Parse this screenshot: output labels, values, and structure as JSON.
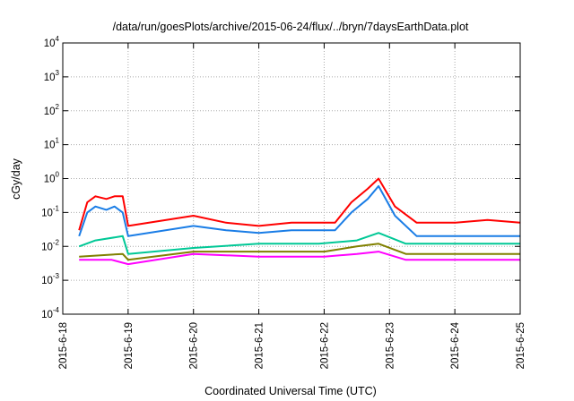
{
  "chart_data": {
    "type": "line",
    "title": "/data/run/goesPlots/archive/2015-06-24/flux/../bryn/7daysEarthData.plot",
    "xlabel": "Coordinated Universal Time (UTC)",
    "ylabel": "cGy/day",
    "y_scale": "log",
    "ylim": [
      0.0001,
      10000
    ],
    "y_ticks": [
      {
        "base": "10",
        "exp": "-4",
        "value": 0.0001
      },
      {
        "base": "10",
        "exp": "-3",
        "value": 0.001
      },
      {
        "base": "10",
        "exp": "-2",
        "value": 0.01
      },
      {
        "base": "10",
        "exp": "-1",
        "value": 0.1
      },
      {
        "base": "10",
        "exp": "0",
        "value": 1
      },
      {
        "base": "10",
        "exp": "1",
        "value": 10
      },
      {
        "base": "10",
        "exp": "2",
        "value": 100
      },
      {
        "base": "10",
        "exp": "3",
        "value": 1000
      },
      {
        "base": "10",
        "exp": "4",
        "value": 10000
      }
    ],
    "x_ticks": [
      "2015-6-18",
      "2015-6-19",
      "2015-6-20",
      "2015-6-21",
      "2015-6-22",
      "2015-6-23",
      "2015-6-24",
      "2015-6-25"
    ],
    "xlim": [
      "2015-6-18",
      "2015-6-25"
    ],
    "grid": true,
    "series": [
      {
        "color": "#ff0000",
        "x": [
          "2015-6-18 06:00",
          "2015-6-18 09:00",
          "2015-6-18 12:00",
          "2015-6-18 16:00",
          "2015-6-18 19:00",
          "2015-6-18 22:00",
          "2015-6-19 00:00",
          "2015-6-20 00:00",
          "2015-6-20 12:00",
          "2015-6-21 00:00",
          "2015-6-21 12:00",
          "2015-6-21 22:00",
          "2015-6-22 04:00",
          "2015-6-22 10:00",
          "2015-6-22 16:00",
          "2015-6-22 20:00",
          "2015-6-23 02:00",
          "2015-6-23 10:00",
          "2015-6-24 00:00",
          "2015-6-24 12:00",
          "2015-6-25 00:00"
        ],
        "y": [
          0.03,
          0.2,
          0.3,
          0.25,
          0.3,
          0.3,
          0.04,
          0.08,
          0.05,
          0.04,
          0.05,
          0.05,
          0.05,
          0.2,
          0.5,
          1.0,
          0.15,
          0.05,
          0.05,
          0.06,
          0.05
        ]
      },
      {
        "color": "#1a7de6",
        "x": [
          "2015-6-18 06:00",
          "2015-6-18 09:00",
          "2015-6-18 12:00",
          "2015-6-18 16:00",
          "2015-6-18 19:00",
          "2015-6-18 22:00",
          "2015-6-19 00:00",
          "2015-6-20 00:00",
          "2015-6-20 12:00",
          "2015-6-21 00:00",
          "2015-6-21 12:00",
          "2015-6-21 22:00",
          "2015-6-22 04:00",
          "2015-6-22 10:00",
          "2015-6-22 16:00",
          "2015-6-22 20:00",
          "2015-6-23 02:00",
          "2015-6-23 10:00",
          "2015-6-24 00:00",
          "2015-6-24 12:00",
          "2015-6-25 00:00"
        ],
        "y": [
          0.02,
          0.1,
          0.15,
          0.12,
          0.15,
          0.1,
          0.02,
          0.04,
          0.03,
          0.025,
          0.03,
          0.03,
          0.03,
          0.1,
          0.25,
          0.6,
          0.08,
          0.02,
          0.02,
          0.02,
          0.02
        ]
      },
      {
        "color": "#00c896",
        "x": [
          "2015-6-18 06:00",
          "2015-6-18 12:00",
          "2015-6-18 22:00",
          "2015-6-19 00:00",
          "2015-6-20 00:00",
          "2015-6-21 00:00",
          "2015-6-21 22:00",
          "2015-6-22 12:00",
          "2015-6-22 20:00",
          "2015-6-23 06:00",
          "2015-6-24 00:00",
          "2015-6-25 00:00"
        ],
        "y": [
          0.01,
          0.015,
          0.02,
          0.006,
          0.009,
          0.012,
          0.012,
          0.015,
          0.025,
          0.012,
          0.012,
          0.012
        ]
      },
      {
        "color": "#808000",
        "x": [
          "2015-6-18 06:00",
          "2015-6-18 22:00",
          "2015-6-19 00:00",
          "2015-6-20 00:00",
          "2015-6-21 00:00",
          "2015-6-22 00:00",
          "2015-6-22 12:00",
          "2015-6-22 20:00",
          "2015-6-23 06:00",
          "2015-6-24 00:00",
          "2015-6-25 00:00"
        ],
        "y": [
          0.005,
          0.006,
          0.004,
          0.007,
          0.007,
          0.007,
          0.01,
          0.012,
          0.006,
          0.006,
          0.006
        ]
      },
      {
        "color": "#ff00ff",
        "x": [
          "2015-6-18 06:00",
          "2015-6-18 12:00",
          "2015-6-18 18:00",
          "2015-6-19 00:00",
          "2015-6-20 00:00",
          "2015-6-21 00:00",
          "2015-6-22 00:00",
          "2015-6-22 12:00",
          "2015-6-22 20:00",
          "2015-6-23 06:00",
          "2015-6-24 00:00",
          "2015-6-25 00:00"
        ],
        "y": [
          0.004,
          0.004,
          0.004,
          0.003,
          0.006,
          0.005,
          0.005,
          0.006,
          0.007,
          0.004,
          0.004,
          0.004
        ]
      }
    ]
  }
}
